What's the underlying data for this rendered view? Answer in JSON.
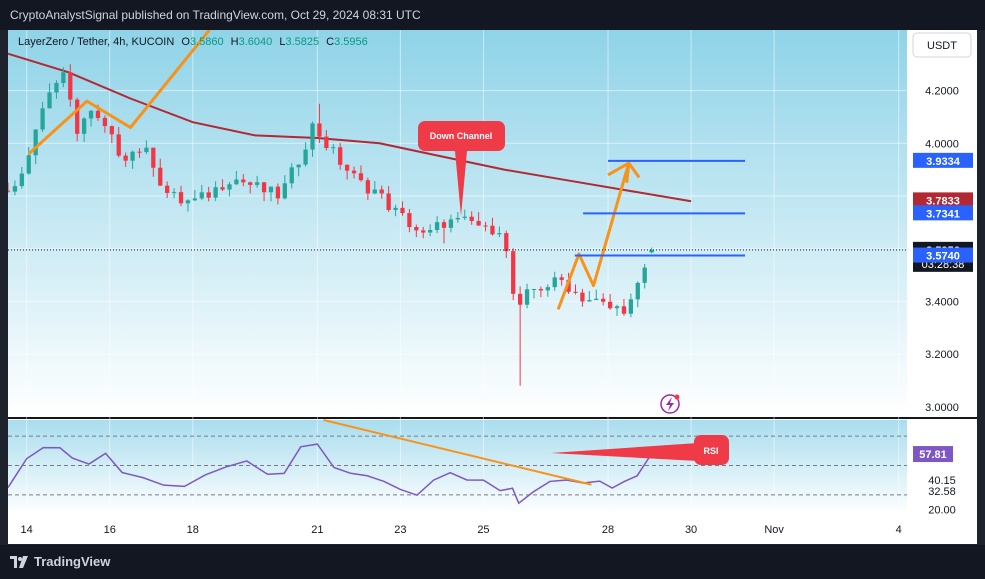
{
  "header": {
    "publish_line": "CryptoAnalystSignal published on TradingView.com, Oct 29, 2024 08:31 UTC"
  },
  "legend": {
    "symbol": "LayerZero / Tether, 4h, KUCOIN",
    "o_label": "O",
    "o_value": "3.5860",
    "h_label": "H",
    "h_value": "3.6040",
    "l_label": "L",
    "l_value": "3.5825",
    "c_label": "C",
    "c_value": "3.5956"
  },
  "currency_button": "USDT",
  "brand": "TradingView",
  "annotations": {
    "down_channel": "Down Channel",
    "rsi": "RSI"
  },
  "colors": {
    "bull": "#26a69a",
    "bear": "#f23645",
    "ma": "#b22833",
    "level": "#2962ff",
    "trend": "#f7931a",
    "rsi_line": "#7e57c2",
    "callout": "#ef3a47",
    "bg_top": "#8fd3e8",
    "bg_bottom": "#ffffff"
  },
  "chart_data": {
    "type": "candlestick",
    "price_axis": {
      "ticks": [
        4.2,
        4.0,
        3.4,
        3.2,
        3.0
      ],
      "tick_labels": [
        "4.2000",
        "4.0000",
        "3.4000",
        "3.2000",
        "3.0000"
      ],
      "range": [
        2.965,
        4.43
      ]
    },
    "badges": [
      {
        "value": 3.9334,
        "label": "3.9334",
        "color": "#2962ff"
      },
      {
        "value": 3.7833,
        "label": "3.7833",
        "color": "#b22833"
      },
      {
        "value": 3.7341,
        "label": "3.7341",
        "color": "#2962ff"
      },
      {
        "value": 3.5956,
        "label": "3.5956",
        "color": "#131722"
      },
      {
        "value": 3.574,
        "label": "3.5740",
        "color": "#2962ff"
      }
    ],
    "countdown": "03:28:38",
    "levels": [
      {
        "value": 3.9334,
        "from_day": 28.0,
        "to_day": 31.3
      },
      {
        "value": 3.7341,
        "from_day": 27.4,
        "to_day": 31.3
      },
      {
        "value": 3.574,
        "from_day": 27.2,
        "to_day": 31.3
      }
    ],
    "last_price": 3.5956,
    "time_axis": {
      "ticks": [
        {
          "day": 14,
          "label": "14"
        },
        {
          "day": 16,
          "label": "16"
        },
        {
          "day": 18,
          "label": "18"
        },
        {
          "day": 21,
          "label": "21"
        },
        {
          "day": 23,
          "label": "23"
        },
        {
          "day": 25,
          "label": "25"
        },
        {
          "day": 28,
          "label": "28"
        },
        {
          "day": 30,
          "label": "30"
        },
        {
          "day": 32,
          "label": "Nov"
        },
        {
          "day": 35,
          "label": "4"
        }
      ],
      "range": [
        13.55,
        35.2
      ]
    },
    "rsi": {
      "value_label": "57.81",
      "tick_labels": [
        "40.15",
        "32.58",
        "20.00"
      ],
      "tick_values": [
        40.15,
        32.58,
        20.0
      ],
      "guide_levels": [
        70,
        50,
        30
      ]
    }
  }
}
